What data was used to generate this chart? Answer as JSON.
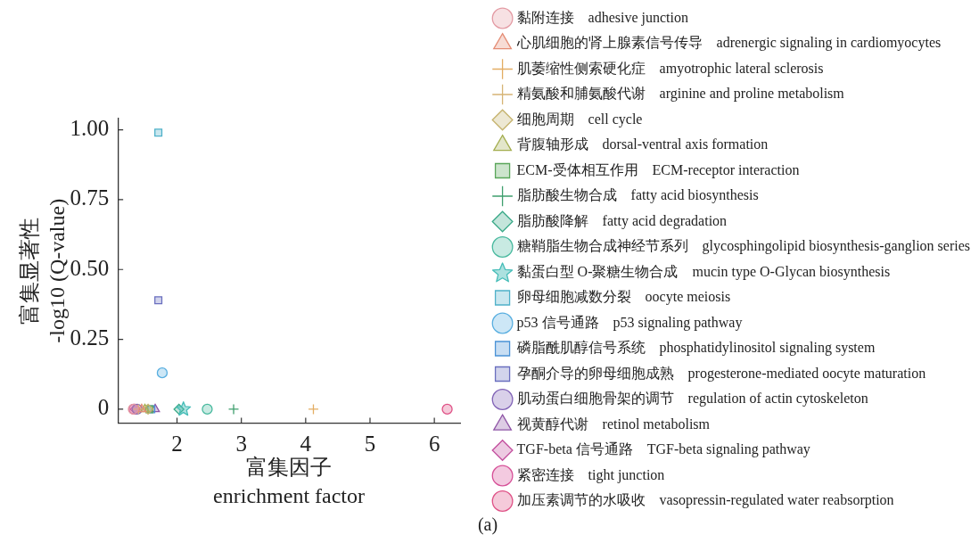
{
  "chart_data": {
    "type": "scatter",
    "xlabel": "富集因子\nenrichment factor",
    "ylabel": "富集显著性\n-log10 (Q-value)",
    "xlim": [
      1.08,
      6.4
    ],
    "xticks": [
      2,
      3,
      4,
      5,
      6
    ],
    "ylim": [
      -0.05,
      1.04
    ],
    "yticks": [
      0,
      0.25,
      {
        "value": 0.5,
        "label": "0.50"
      },
      0.75,
      {
        "value": 1,
        "label": "1.00"
      }
    ],
    "legend": "right",
    "annotations": [
      "(a)"
    ],
    "series": [
      {
        "name": "黏附连接　adhesive junction",
        "color": "#e39aa3",
        "marker": "circle",
        "x": [
          1.32
        ],
        "values": [
          0
        ]
      },
      {
        "name": "心肌细胞的肾上腺素信号传导　adrenergic signaling in cardiomyocytes",
        "color": "#e48c74",
        "marker": "triangle",
        "x": [
          1.45
        ],
        "values": [
          0
        ]
      },
      {
        "name": "肌萎缩性侧索硬化症　amyotrophic lateral sclerosis",
        "color": "#e3ad63",
        "marker": "cross",
        "x": [
          4.12
        ],
        "values": [
          0
        ]
      },
      {
        "name": "精氨酸和脯氨酸代谢　arginine and proline metabolism",
        "color": "#d6b475",
        "marker": "cross",
        "x": [
          1.4
        ],
        "values": [
          0
        ]
      },
      {
        "name": "细胞周期　cell cycle",
        "color": "#c5b26c",
        "marker": "diamond",
        "x": [
          1.55
        ],
        "values": [
          0
        ]
      },
      {
        "name": "背腹轴形成　dorsal-ventral axis formation",
        "color": "#a3ad4e",
        "marker": "triangle",
        "x": [
          1.5
        ],
        "values": [
          0
        ]
      },
      {
        "name": "ECM-受体相互作用　ECM-receptor interaction",
        "color": "#5aa65a",
        "marker": "square",
        "x": [
          1.57
        ],
        "values": [
          0
        ]
      },
      {
        "name": "脂肪酸生物合成　fatty acid biosynthesis",
        "color": "#3f9f6e",
        "marker": "cross",
        "x": [
          2.88
        ],
        "values": [
          0
        ]
      },
      {
        "name": "脂肪酸降解　fatty acid degradation",
        "color": "#3aa988",
        "marker": "diamond",
        "x": [
          2.03
        ],
        "values": [
          0
        ]
      },
      {
        "name": "糖鞘脂生物合成神经节系列　glycosphingolipid biosynthesis-ganglion series",
        "color": "#48b99e",
        "marker": "circle",
        "x": [
          2.47
        ],
        "values": [
          0
        ]
      },
      {
        "name": "黏蛋白型 O-聚糖生物合成　mucin type O-Glycan biosynthesis",
        "color": "#46bdb8",
        "marker": "star",
        "x": [
          2.1
        ],
        "values": [
          0
        ]
      },
      {
        "name": "卵母细胞减数分裂　oocyte meiosis",
        "color": "#4fb1c9",
        "marker": "square",
        "x": [
          1.71
        ],
        "values": [
          0.99
        ]
      },
      {
        "name": "p53 信号通路　p53 signaling pathway",
        "color": "#58aee0",
        "marker": "circle",
        "x": [
          1.77
        ],
        "values": [
          0.13
        ]
      },
      {
        "name": "磷脂酰肌醇信号系统　phosphatidylinositol signaling system",
        "color": "#4a92d6",
        "marker": "square",
        "x": [
          1.6
        ],
        "values": [
          0
        ]
      },
      {
        "name": "孕酮介导的卵母细胞成熟　progesterone-mediated oocyte maturation",
        "color": "#6a6fbf",
        "marker": "square",
        "x": [
          1.71
        ],
        "values": [
          0.39
        ]
      },
      {
        "name": "肌动蛋白细胞骨架的调节　regulation of actin cytoskeleton",
        "color": "#8062b6",
        "marker": "circle",
        "x": [
          1.38
        ],
        "values": [
          0
        ]
      },
      {
        "name": "视黄醇代谢　retinol metabolism",
        "color": "#8f55a6",
        "marker": "triangle",
        "x": [
          1.66
        ],
        "values": [
          0
        ]
      },
      {
        "name": "TGF-beta 信号通路　TGF-beta signaling pathway",
        "color": "#c34f9e",
        "marker": "diamond",
        "x": [
          1.35
        ],
        "values": [
          0
        ]
      },
      {
        "name": "紧密连接　tight junction",
        "color": "#d64f97",
        "marker": "circle",
        "x": [
          1.33
        ],
        "values": [
          0
        ]
      },
      {
        "name": "加压素调节的水吸收　vasopressin-regulated water reabsorption",
        "color": "#df5186",
        "marker": "circle",
        "x": [
          6.2
        ],
        "values": [
          0
        ]
      }
    ]
  }
}
